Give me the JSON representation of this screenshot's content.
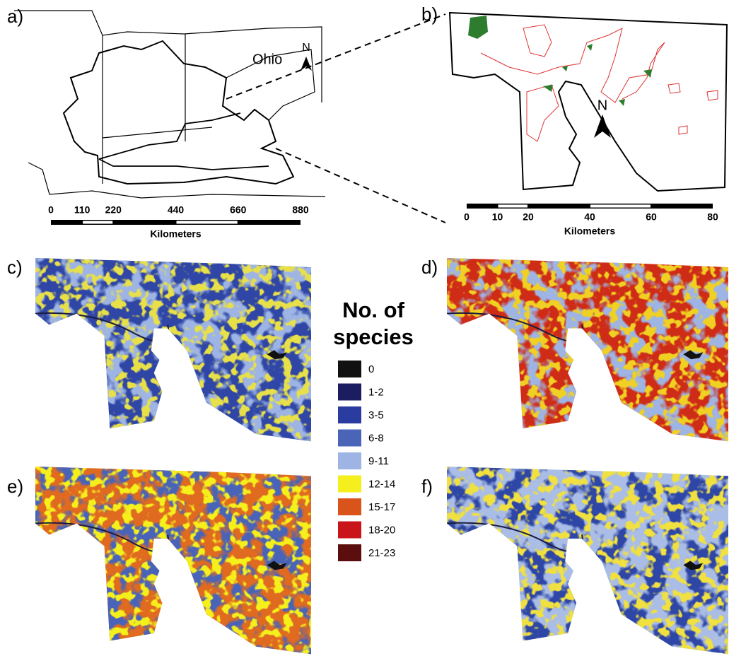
{
  "panels": {
    "a": {
      "label": "a)",
      "state": "Ohio",
      "north": "N",
      "scale": {
        "ticks": [
          0,
          110,
          220,
          440,
          660,
          880
        ],
        "unit": "Kilometers"
      }
    },
    "b": {
      "label": "b)",
      "north": "N",
      "scale": {
        "ticks": [
          0,
          10,
          20,
          40,
          60,
          80
        ],
        "unit": "Kilometers"
      }
    },
    "c": {
      "label": "c)"
    },
    "d": {
      "label": "d)"
    },
    "e": {
      "label": "e)"
    },
    "f": {
      "label": "f)"
    }
  },
  "legend": {
    "title": "No. of species",
    "items": [
      {
        "label": "0",
        "color": "#111111"
      },
      {
        "label": "1-2",
        "color": "#1c1c60"
      },
      {
        "label": "3-5",
        "color": "#2b3ca0"
      },
      {
        "label": "6-8",
        "color": "#4a64b8"
      },
      {
        "label": "9-11",
        "color": "#9db4e4"
      },
      {
        "label": "12-14",
        "color": "#f5ef1e"
      },
      {
        "label": "15-17",
        "color": "#d9541a"
      },
      {
        "label": "18-20",
        "color": "#c9141a"
      },
      {
        "label": "21-23",
        "color": "#5c0d0d"
      }
    ]
  }
}
